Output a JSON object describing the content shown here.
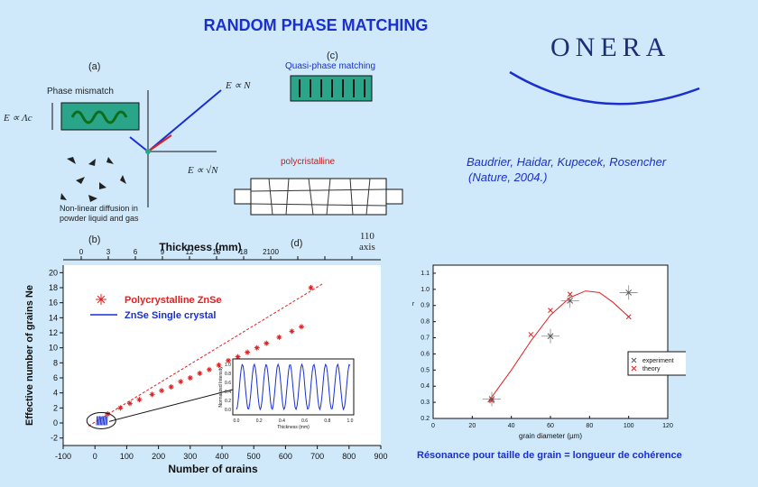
{
  "title": "RANDOM PHASE MATCHING",
  "logo": "ONERA",
  "labels": {
    "a": "(a)",
    "b": "(b)",
    "c": "(c)",
    "d": "(d)",
    "phase_mismatch": "Phase mismatch",
    "quasi_phase": "Quasi-phase matching",
    "polycristalline": "polycristalline",
    "nonlinear_line1": "Non-linear diffusion in",
    "nonlinear_line2": "powder liquid and gas",
    "axis110_line1": "110",
    "axis110_line2": "axis",
    "e_prop_n": "E ∝ N",
    "e_prop_sqrt_n": "E ∝ √N",
    "e_prop_lambda": "E ∝ Λc"
  },
  "authors": {
    "line1": "Baudrier, Haidar, Kupecek, Rosencher",
    "line2": "(Nature, 2004.)"
  },
  "resonance_text": "Résonance pour taille de grain = longueur de cohérence",
  "colors": {
    "accent": "#1a2fd0",
    "red": "#e02020",
    "teal": "#2aa58a"
  },
  "chart_data": [
    {
      "type": "scatter",
      "title": "",
      "xlabel": "Number of grains",
      "ylabel": "Effective number of grains Ne",
      "top_axis_label": "Thickness (mm)",
      "top_ticks": [
        "0",
        "3",
        "6",
        "9",
        "12",
        "15",
        "18",
        "2100",
        "",
        "",
        ""
      ],
      "xticks": [
        -100,
        0,
        100,
        200,
        300,
        400,
        500,
        600,
        700,
        800,
        900
      ],
      "yticks": [
        -2,
        0,
        2,
        4,
        6,
        8,
        10,
        12,
        14,
        16,
        18,
        20
      ],
      "xlim": [
        -100,
        900
      ],
      "ylim": [
        -3,
        21
      ],
      "legend": [
        "Polycrystalline ZnSe",
        "ZnSe Single crystal"
      ],
      "series": [
        {
          "name": "Polycrystalline ZnSe",
          "x": [
            40,
            80,
            110,
            140,
            180,
            210,
            240,
            270,
            300,
            330,
            360,
            390,
            420,
            450,
            480,
            510,
            540,
            580,
            620,
            650,
            680
          ],
          "y": [
            1.2,
            2.0,
            2.6,
            3.1,
            3.8,
            4.3,
            4.8,
            5.5,
            6.0,
            6.6,
            7.1,
            7.7,
            8.3,
            8.8,
            9.4,
            10.0,
            10.6,
            11.4,
            12.2,
            12.8,
            18.0
          ]
        }
      ],
      "fit_line": {
        "x": [
          -20,
          720
        ],
        "y": [
          -0.4,
          18.6
        ]
      },
      "inset": {
        "xlabel": "Thickness (mm)",
        "ylabel": "Normalized Intensity",
        "xticks": [
          "0.0",
          "0.2",
          "0.4",
          "0.6",
          "0.8",
          "1.0"
        ],
        "yticks": [
          "0.0",
          "0.2",
          "0.4",
          "0.6",
          "0.8",
          "1.0"
        ]
      }
    },
    {
      "type": "scatter",
      "xlabel": "grain diameter (µm)",
      "ylabel": "r",
      "xticks": [
        0,
        20,
        40,
        60,
        80,
        100,
        120
      ],
      "yticks": [
        "0.2",
        "0.3",
        "0.4",
        "0.5",
        "0.6",
        "0.7",
        "0.8",
        "0.9",
        "1.0",
        "1.1"
      ],
      "xlim": [
        0,
        120
      ],
      "ylim": [
        0.2,
        1.15
      ],
      "legend": [
        "experiment",
        "theory"
      ],
      "series": [
        {
          "name": "experiment",
          "x": [
            30,
            60,
            70,
            100
          ],
          "y": [
            0.32,
            0.71,
            0.93,
            0.98
          ]
        },
        {
          "name": "theory",
          "x": [
            30,
            50,
            60,
            70,
            100
          ],
          "y": [
            0.31,
            0.72,
            0.87,
            0.97,
            0.83
          ]
        }
      ],
      "curve": {
        "x": [
          28,
          40,
          50,
          60,
          70,
          78,
          85,
          92,
          100
        ],
        "y": [
          0.3,
          0.5,
          0.68,
          0.84,
          0.95,
          0.99,
          0.98,
          0.92,
          0.83
        ]
      }
    }
  ]
}
